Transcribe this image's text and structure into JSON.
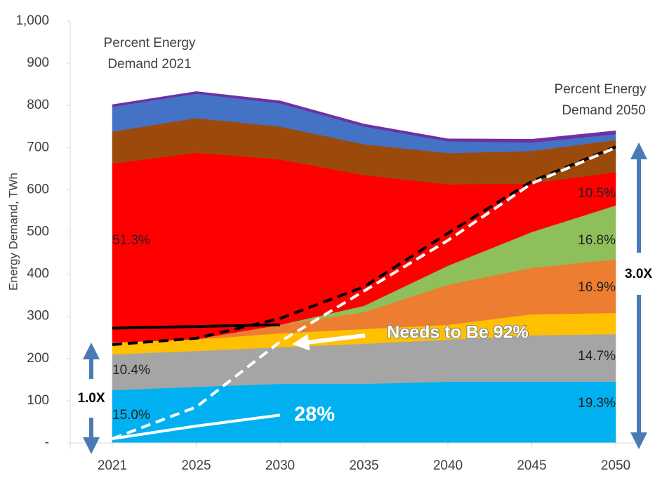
{
  "chart_data": {
    "type": "stacked_area",
    "y_label": "Energy Demand, TWh",
    "categories": [
      "2021",
      "2025",
      "2030",
      "2035",
      "2040",
      "2045",
      "2050"
    ],
    "ylim": [
      0,
      1000
    ],
    "yticks": [
      {
        "value": 0,
        "label": "-"
      },
      100,
      200,
      300,
      400,
      500,
      600,
      700,
      800,
      900,
      {
        "value": 1000,
        "label": "1,000"
      }
    ],
    "grid": false,
    "series": [
      {
        "color": "#00b0f0",
        "values": [
          125,
          133,
          140,
          140,
          145,
          145,
          145
        ]
      },
      {
        "color": "#a5a5a5",
        "values": [
          85,
          85,
          87,
          95,
          100,
          110,
          113
        ]
      },
      {
        "color": "#ffc000",
        "values": [
          28,
          27,
          33,
          35,
          35,
          50,
          50
        ]
      },
      {
        "color": "#ed7d31",
        "values": [
          0,
          1,
          20,
          40,
          95,
          110,
          127
        ]
      },
      {
        "color": "#8fbf5a",
        "values": [
          0,
          0,
          0,
          15,
          45,
          85,
          128
        ]
      },
      {
        "color": "#ff0000",
        "values": [
          424,
          442,
          392,
          310,
          193,
          115,
          79
        ]
      },
      {
        "color": "#9c4a0c",
        "values": [
          76,
          82,
          78,
          73,
          74,
          77,
          76
        ]
      },
      {
        "color": "#4472c4",
        "values": [
          59,
          58,
          55,
          42,
          28,
          20,
          14
        ]
      },
      {
        "color": "#7030a0",
        "values": [
          5,
          5,
          6,
          6,
          6,
          8,
          8
        ]
      }
    ],
    "lines": [
      {
        "color": "#000000",
        "dashed": false,
        "values": [
          272,
          276,
          280,
          null,
          null,
          null,
          null
        ]
      },
      {
        "color": "#ffffff",
        "dashed": false,
        "values": [
          10,
          40,
          66,
          null,
          null,
          null,
          null
        ]
      },
      {
        "color": "#000000",
        "dashed": true,
        "values": [
          233,
          248,
          295,
          370,
          497,
          620,
          702
        ]
      },
      {
        "color": "#ffffff",
        "dashed": true,
        "values": [
          10,
          85,
          240,
          360,
          480,
          615,
          700
        ]
      }
    ],
    "annotations": [
      "Percent Energy",
      "Demand 2021",
      "Percent Energy",
      "Demand 2050",
      "51.3%",
      "10.4%",
      "15.0%",
      "10.5%",
      "16.8%",
      "16.9%",
      "14.7%",
      "19.3%",
      "1.0X",
      "3.0X",
      "Needs to Be 92%",
      "28%"
    ]
  }
}
